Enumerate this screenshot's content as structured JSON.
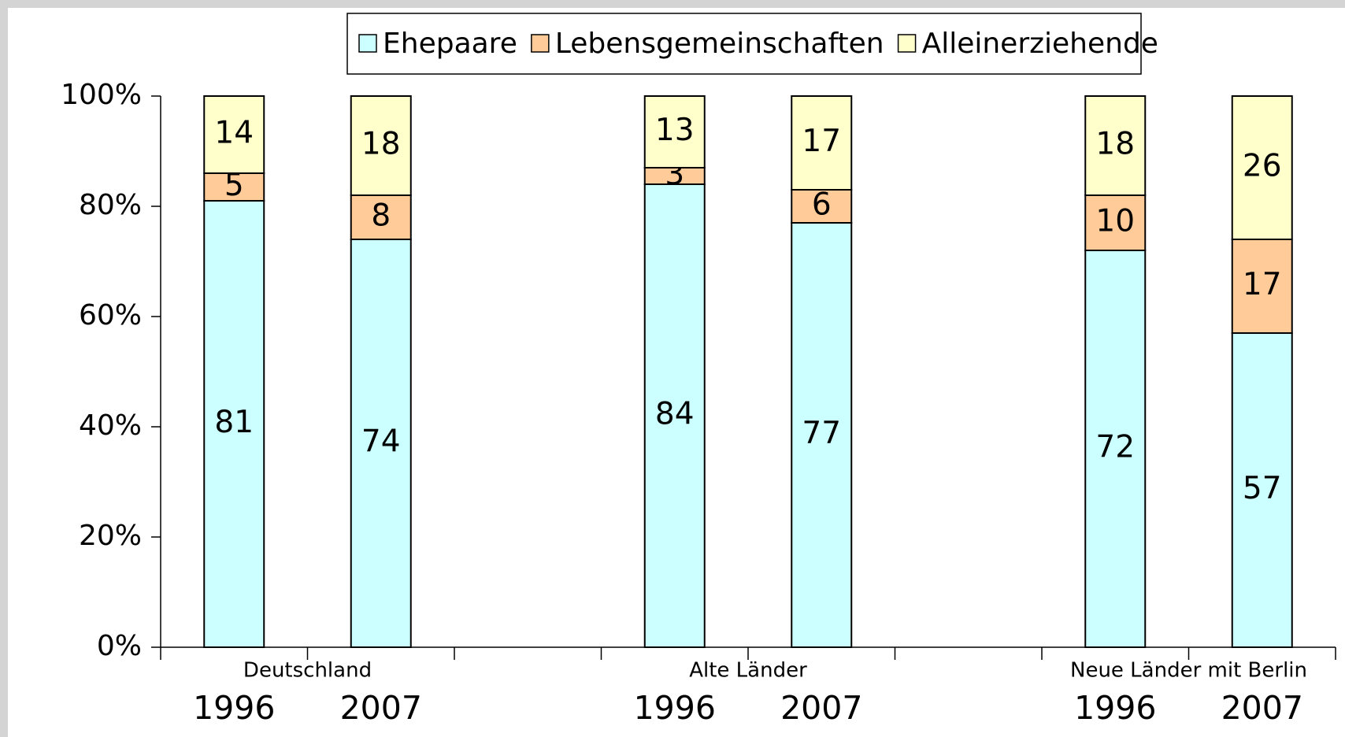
{
  "chart_data": {
    "type": "stacked_bar",
    "groups": [
      "Deutschland",
      "Alte Länder",
      "Neue Länder mit Berlin"
    ],
    "categories": [
      "1996",
      "2007",
      "1996",
      "2007",
      "1996",
      "2007"
    ],
    "series": [
      {
        "name": "Ehepaare",
        "color": "#ccffff",
        "values": [
          81,
          74,
          84,
          77,
          72,
          57
        ]
      },
      {
        "name": "Lebensgemeinschaften",
        "color": "#ffcc99",
        "values": [
          5,
          8,
          3,
          6,
          10,
          17
        ]
      },
      {
        "name": "Alleinerziehende",
        "color": "#ffffcc",
        "values": [
          14,
          18,
          13,
          17,
          18,
          26
        ]
      }
    ],
    "ylim": [
      0,
      100
    ],
    "yticks": [
      {
        "value": 0,
        "label": "0%"
      },
      {
        "value": 20,
        "label": "20%"
      },
      {
        "value": 40,
        "label": "40%"
      },
      {
        "value": 60,
        "label": "60%"
      },
      {
        "value": 80,
        "label": "80%"
      },
      {
        "value": 100,
        "label": "100%"
      }
    ],
    "legend": "top"
  }
}
